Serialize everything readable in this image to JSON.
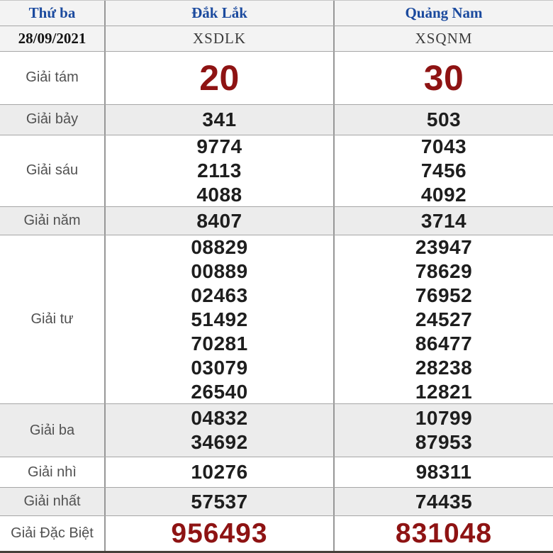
{
  "header": {
    "weekday": "Thứ ba",
    "date": "28/09/2021",
    "provinces": [
      "Đắk Lắk",
      "Quảng Nam"
    ],
    "codes": [
      "XSDLK",
      "XSQNM"
    ]
  },
  "rows": [
    {
      "label": "Giải tám",
      "dlk": [
        "20"
      ],
      "qnm": [
        "30"
      ]
    },
    {
      "label": "Giải bảy",
      "dlk": [
        "341"
      ],
      "qnm": [
        "503"
      ]
    },
    {
      "label": "Giải sáu",
      "dlk": [
        "9774",
        "2113",
        "4088"
      ],
      "qnm": [
        "7043",
        "7456",
        "4092"
      ]
    },
    {
      "label": "Giải năm",
      "dlk": [
        "8407"
      ],
      "qnm": [
        "3714"
      ]
    },
    {
      "label": "Giải tư",
      "dlk": [
        "08829",
        "00889",
        "02463",
        "51492",
        "70281",
        "03079",
        "26540"
      ],
      "qnm": [
        "23947",
        "78629",
        "76952",
        "24527",
        "86477",
        "28238",
        "12821"
      ]
    },
    {
      "label": "Giải ba",
      "dlk": [
        "04832",
        "34692"
      ],
      "qnm": [
        "10799",
        "87953"
      ]
    },
    {
      "label": "Giải nhì",
      "dlk": [
        "10276"
      ],
      "qnm": [
        "98311"
      ]
    },
    {
      "label": "Giải nhất",
      "dlk": [
        "57537"
      ],
      "qnm": [
        "74435"
      ]
    },
    {
      "label": "Giải Đặc Biệt",
      "dlk": [
        "956493"
      ],
      "qnm": [
        "831048"
      ]
    }
  ],
  "colors": {
    "accent_blue": "#1b4a9e",
    "accent_red": "#8e1313",
    "stripe_gray": "#ececec",
    "header_bg": "#f3f3f3",
    "border_gray": "#a6a6a6"
  }
}
